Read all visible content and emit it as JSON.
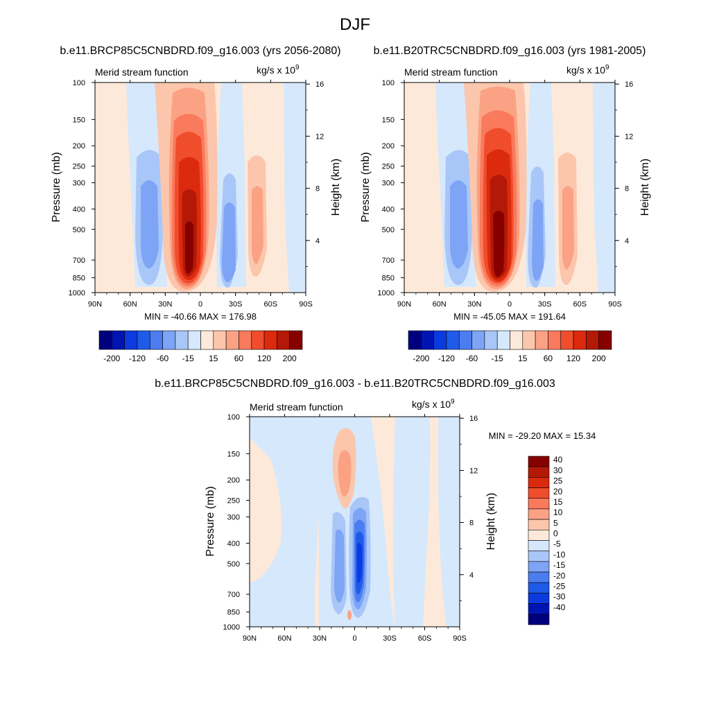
{
  "title": "DJF",
  "panel_units": "kg/s x 10",
  "panel_units_exp": "9",
  "chart_data": [
    {
      "type": "heatmap",
      "subtitle": "b.e11.BRCP85C5CNBDRD.f09_g16.003 (yrs 2056-2080)",
      "left_label": "Merid stream function",
      "ylabel": "Pressure (mb)",
      "y2label": "Height (km)",
      "x_ticks": [
        "90N",
        "60N",
        "30N",
        "0",
        "30S",
        "60S",
        "90S"
      ],
      "y_ticks": [
        "100",
        "150",
        "200",
        "250",
        "300",
        "400",
        "500",
        "700",
        "850",
        "1000"
      ],
      "y2_ticks": [
        "16",
        "12",
        "8",
        "4"
      ],
      "minmax": "MIN = -40.66  MAX = 176.98",
      "min": -40.66,
      "max": 176.98,
      "colorbar_labels": [
        "-200",
        "-120",
        "-60",
        "-15",
        "15",
        "60",
        "120",
        "200"
      ],
      "colors": [
        "#00007f",
        "#0014b4",
        "#0b3be0",
        "#1f5ae8",
        "#4b7df0",
        "#7ea4f5",
        "#a9c6f8",
        "#d6e8fc",
        "#fde9da",
        "#fcc6ac",
        "#fba284",
        "#f97a5c",
        "#f04d2c",
        "#db2a0d",
        "#b31906",
        "#870000"
      ]
    },
    {
      "type": "heatmap",
      "subtitle": "b.e11.B20TRC5CNBDRD.f09_g16.003 (yrs 1981-2005)",
      "left_label": "Merid stream function",
      "ylabel": "Pressure (mb)",
      "y2label": "Height (km)",
      "x_ticks": [
        "90N",
        "60N",
        "30N",
        "0",
        "30S",
        "60S",
        "90S"
      ],
      "y_ticks": [
        "100",
        "150",
        "200",
        "250",
        "300",
        "400",
        "500",
        "700",
        "850",
        "1000"
      ],
      "y2_ticks": [
        "16",
        "12",
        "8",
        "4"
      ],
      "minmax": "MIN = -45.05  MAX = 191.64",
      "min": -45.05,
      "max": 191.64,
      "colorbar_labels": [
        "-200",
        "-120",
        "-60",
        "-15",
        "15",
        "60",
        "120",
        "200"
      ],
      "colors": [
        "#00007f",
        "#0014b4",
        "#0b3be0",
        "#1f5ae8",
        "#4b7df0",
        "#7ea4f5",
        "#a9c6f8",
        "#d6e8fc",
        "#fde9da",
        "#fcc6ac",
        "#fba284",
        "#f97a5c",
        "#f04d2c",
        "#db2a0d",
        "#b31906",
        "#870000"
      ]
    },
    {
      "type": "heatmap",
      "subtitle": "b.e11.BRCP85C5CNBDRD.f09_g16.003 - b.e11.B20TRC5CNBDRD.f09_g16.003",
      "left_label": "Merid stream function",
      "ylabel": "Pressure (mb)",
      "y2label": "Height (km)",
      "x_ticks": [
        "90N",
        "60N",
        "30N",
        "0",
        "30S",
        "60S",
        "90S"
      ],
      "y_ticks": [
        "100",
        "150",
        "200",
        "250",
        "300",
        "400",
        "500",
        "700",
        "850",
        "1000"
      ],
      "y2_ticks": [
        "16",
        "12",
        "8",
        "4"
      ],
      "minmax": "MIN = -29.20  MAX =  15.34",
      "min": -29.2,
      "max": 15.34,
      "colorbar_labels": [
        "40",
        "30",
        "25",
        "20",
        "15",
        "10",
        "5",
        "0",
        "-5",
        "-10",
        "-15",
        "-20",
        "-25",
        "-30",
        "-40"
      ],
      "colors": [
        "#870000",
        "#b31906",
        "#db2a0d",
        "#f04d2c",
        "#f97a5c",
        "#fba284",
        "#fcc6ac",
        "#fde9da",
        "#d6e8fc",
        "#a9c6f8",
        "#7ea4f5",
        "#4b7df0",
        "#1f5ae8",
        "#0b3be0",
        "#0014b4",
        "#00007f"
      ]
    }
  ]
}
